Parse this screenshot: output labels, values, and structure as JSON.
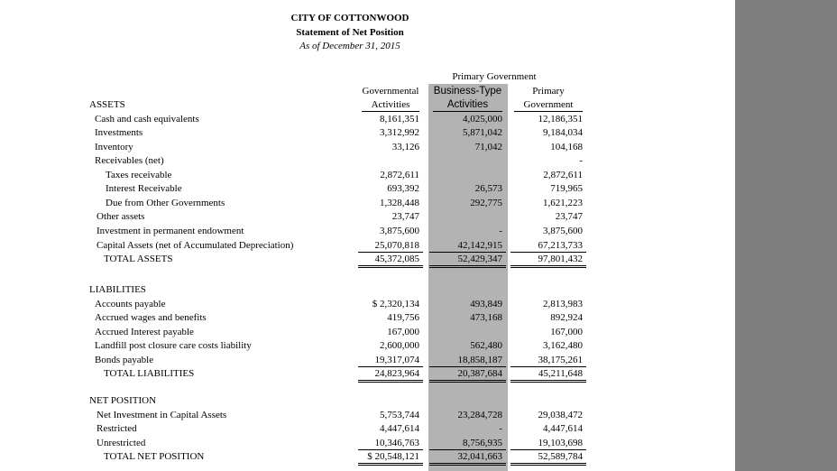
{
  "header": {
    "title": "CITY OF COTTONWOOD",
    "subtitle": "Statement of Net Position",
    "date": "As of December 31, 2015"
  },
  "columns": {
    "group": "Primary Government",
    "heads": [
      [
        "Governmental",
        "Activities"
      ],
      [
        "Business-Type",
        "Activities"
      ],
      [
        "Primary",
        "Government"
      ]
    ]
  },
  "sections": [
    {
      "title": "ASSETS",
      "rows": [
        {
          "label": "Cash and cash equivalents",
          "values": [
            "8,161,351",
            "4,025,000",
            "12,186,351"
          ]
        },
        {
          "label": "Investments",
          "values": [
            "3,312,992",
            "5,871,042",
            "9,184,034"
          ]
        },
        {
          "label": "Inventory",
          "values": [
            "33,126",
            "71,042",
            "104,168"
          ]
        },
        {
          "label": "Receivables (net)",
          "values": [
            null,
            null,
            "-"
          ]
        },
        {
          "label": "Taxes receivable",
          "values": [
            "2,872,611",
            null,
            "2,872,611"
          ]
        },
        {
          "label": "Interest Receivable",
          "values": [
            "693,392",
            "26,573",
            "719,965"
          ]
        },
        {
          "label": "Due from Other Governments",
          "values": [
            "1,328,448",
            "292,775",
            "1,621,223"
          ]
        },
        {
          "label": "Other assets",
          "values": [
            "23,747",
            null,
            "23,747"
          ]
        },
        {
          "label": "Investment in permanent endowment",
          "values": [
            "3,875,600",
            "-",
            "3,875,600"
          ]
        },
        {
          "label": "Capital Assets (net of Accumulated Depreciation)",
          "values": [
            "25,070,818",
            "42,142,915",
            "67,213,733"
          ]
        }
      ],
      "total": {
        "label": "TOTAL ASSETS",
        "values": [
          "45,372,085",
          "52,429,347",
          "97,801,432"
        ]
      }
    },
    {
      "title": "LIABILITIES",
      "rows": [
        {
          "label": "Accounts payable",
          "values": [
            "$ 2,320,134",
            "493,849",
            "2,813,983"
          ]
        },
        {
          "label": "Accrued wages and benefits",
          "values": [
            "419,756",
            "473,168",
            "892,924"
          ]
        },
        {
          "label": "Accrued Interest payable",
          "values": [
            "167,000",
            null,
            "167,000"
          ]
        },
        {
          "label": "Landfill post closure care costs liability",
          "values": [
            "2,600,000",
            "562,480",
            "3,162,480"
          ]
        },
        {
          "label": "Bonds payable",
          "values": [
            "19,317,074",
            "18,858,187",
            "38,175,261"
          ]
        }
      ],
      "total": {
        "label": "TOTAL LIABILITIES",
        "values": [
          "24,823,964",
          "20,387,684",
          "45,211,648"
        ]
      }
    },
    {
      "title": "NET POSITION",
      "rows": [
        {
          "label": "Net Investment in Capital Assets",
          "values": [
            "5,753,744",
            "23,284,728",
            "29,038,472"
          ]
        },
        {
          "label": "Restricted",
          "values": [
            "4,447,614",
            "-",
            "4,447,614"
          ]
        },
        {
          "label": "Unrestricted",
          "values": [
            "10,346,763",
            "8,756,935",
            "19,103,698"
          ]
        }
      ],
      "total": {
        "label": "TOTAL NET POSITION",
        "values": [
          "$ 20,548,121",
          "32,041,663",
          "52,589,784"
        ]
      }
    }
  ]
}
